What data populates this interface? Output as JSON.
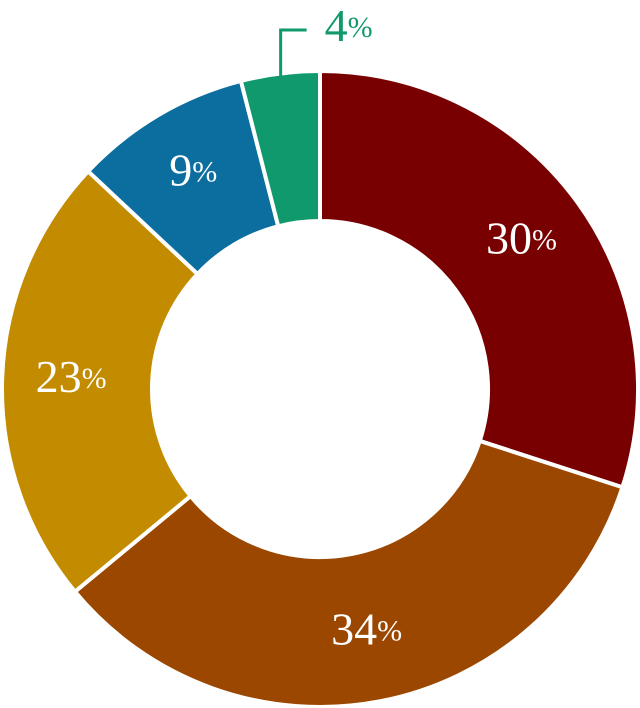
{
  "chart_data": {
    "type": "donut",
    "values": [
      30,
      34,
      23,
      9,
      4
    ],
    "value_labels": [
      "30%",
      "34%",
      "23%",
      "9%",
      "4%"
    ],
    "colors": [
      "#790000",
      "#9b4700",
      "#c38b00",
      "#0b6e9e",
      "#10996c"
    ]
  }
}
